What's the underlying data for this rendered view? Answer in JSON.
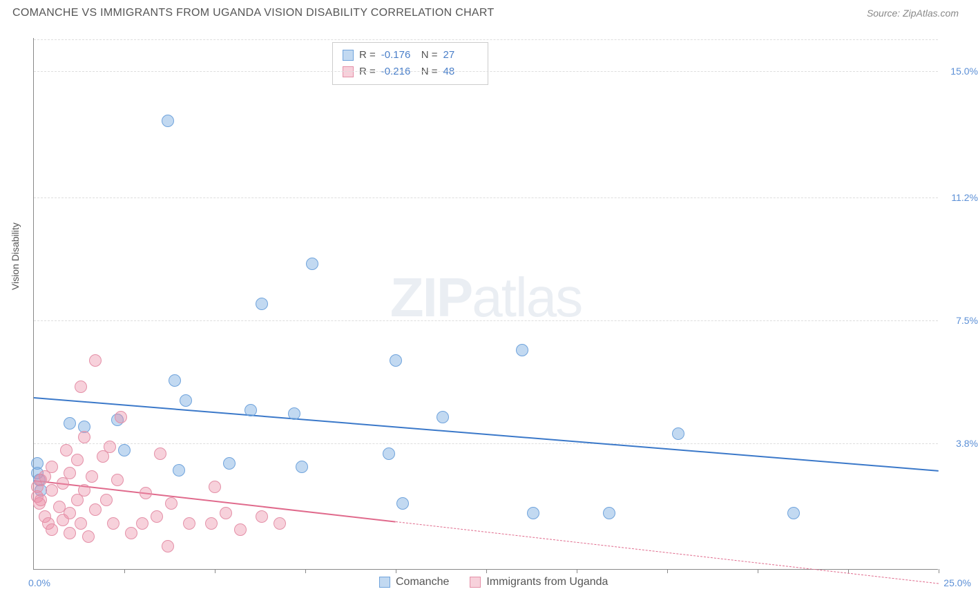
{
  "header": {
    "title": "COMANCHE VS IMMIGRANTS FROM UGANDA VISION DISABILITY CORRELATION CHART",
    "source": "Source: ZipAtlas.com"
  },
  "chart": {
    "type": "scatter",
    "ylabel": "Vision Disability",
    "watermark_a": "ZIP",
    "watermark_b": "atlas",
    "xlim": [
      0,
      25
    ],
    "ylim": [
      0,
      16
    ],
    "x_range_labels": {
      "min": "0.0%",
      "max": "25.0%"
    },
    "ytick_labels": [
      "3.8%",
      "7.5%",
      "11.2%",
      "15.0%"
    ],
    "ytick_values": [
      3.8,
      7.5,
      11.2,
      15.0
    ],
    "xtick_values": [
      2.5,
      5.0,
      7.5,
      10.0,
      12.5,
      15.0,
      17.5,
      20.0,
      22.5,
      25.0
    ],
    "grid_color": "#dddddd",
    "axis_color": "#888888",
    "label_color": "#5b8fd6",
    "background_color": "#ffffff",
    "series": [
      {
        "key": "comanche",
        "label": "Comanche",
        "color_fill": "rgba(120,170,225,0.45)",
        "color_stroke": "#6fa3dc",
        "trend_color": "#3a78c9",
        "marker_radius": 9,
        "R_label": "R =",
        "R_value": "-0.176",
        "N_label": "N =",
        "N_value": "27",
        "trend": {
          "x1": 0,
          "y1": 5.2,
          "x2": 25,
          "y2": 3.0,
          "dashed_from_x": null
        },
        "points": [
          [
            0.1,
            2.9
          ],
          [
            0.2,
            2.4
          ],
          [
            0.15,
            2.7
          ],
          [
            0.1,
            3.2
          ],
          [
            1.0,
            4.4
          ],
          [
            1.4,
            4.3
          ],
          [
            2.5,
            3.6
          ],
          [
            2.3,
            4.5
          ],
          [
            3.7,
            13.5
          ],
          [
            3.9,
            5.7
          ],
          [
            4.2,
            5.1
          ],
          [
            4.0,
            3.0
          ],
          [
            5.4,
            3.2
          ],
          [
            6.0,
            4.8
          ],
          [
            6.3,
            8.0
          ],
          [
            7.2,
            4.7
          ],
          [
            7.4,
            3.1
          ],
          [
            7.7,
            9.2
          ],
          [
            9.8,
            3.5
          ],
          [
            10.0,
            6.3
          ],
          [
            10.2,
            2.0
          ],
          [
            11.3,
            4.6
          ],
          [
            13.5,
            6.6
          ],
          [
            13.8,
            1.7
          ],
          [
            15.9,
            1.7
          ],
          [
            17.8,
            4.1
          ],
          [
            21.0,
            1.7
          ]
        ]
      },
      {
        "key": "uganda",
        "label": "Immigrants from Uganda",
        "color_fill": "rgba(235,140,165,0.40)",
        "color_stroke": "#e48fa7",
        "trend_color": "#e06a8c",
        "marker_radius": 9,
        "R_label": "R =",
        "R_value": "-0.216",
        "N_label": "N =",
        "N_value": "48",
        "trend": {
          "x1": 0,
          "y1": 2.7,
          "x2": 25,
          "y2": -0.4,
          "dashed_from_x": 10.0
        },
        "points": [
          [
            0.1,
            2.2
          ],
          [
            0.1,
            2.5
          ],
          [
            0.2,
            2.1
          ],
          [
            0.2,
            2.7
          ],
          [
            0.15,
            2.0
          ],
          [
            0.3,
            2.8
          ],
          [
            0.3,
            1.6
          ],
          [
            0.4,
            1.4
          ],
          [
            0.5,
            2.4
          ],
          [
            0.5,
            3.1
          ],
          [
            0.5,
            1.2
          ],
          [
            0.7,
            1.9
          ],
          [
            0.8,
            2.6
          ],
          [
            0.8,
            1.5
          ],
          [
            0.9,
            3.6
          ],
          [
            1.0,
            1.1
          ],
          [
            1.0,
            1.7
          ],
          [
            1.0,
            2.9
          ],
          [
            1.2,
            3.3
          ],
          [
            1.2,
            2.1
          ],
          [
            1.3,
            5.5
          ],
          [
            1.3,
            1.4
          ],
          [
            1.4,
            2.4
          ],
          [
            1.4,
            4.0
          ],
          [
            1.5,
            1.0
          ],
          [
            1.6,
            2.8
          ],
          [
            1.7,
            1.8
          ],
          [
            1.7,
            6.3
          ],
          [
            1.9,
            3.4
          ],
          [
            2.0,
            2.1
          ],
          [
            2.1,
            3.7
          ],
          [
            2.2,
            1.4
          ],
          [
            2.3,
            2.7
          ],
          [
            2.4,
            4.6
          ],
          [
            2.7,
            1.1
          ],
          [
            3.0,
            1.4
          ],
          [
            3.1,
            2.3
          ],
          [
            3.4,
            1.6
          ],
          [
            3.5,
            3.5
          ],
          [
            3.7,
            0.7
          ],
          [
            3.8,
            2.0
          ],
          [
            4.3,
            1.4
          ],
          [
            4.9,
            1.4
          ],
          [
            5.0,
            2.5
          ],
          [
            5.3,
            1.7
          ],
          [
            5.7,
            1.2
          ],
          [
            6.3,
            1.6
          ],
          [
            6.8,
            1.4
          ]
        ]
      }
    ]
  }
}
